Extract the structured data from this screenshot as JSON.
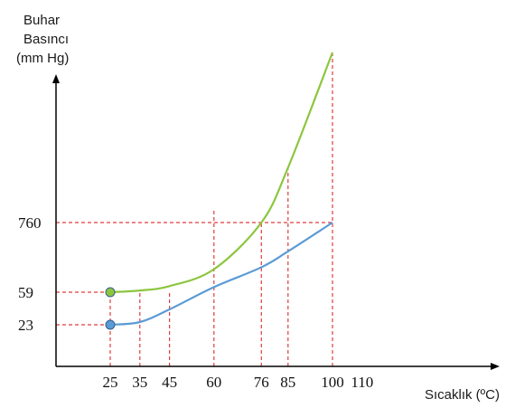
{
  "chart_data": {
    "type": "line",
    "ylabel_lines": [
      "Buhar",
      "Basıncı",
      "(mm Hg)"
    ],
    "xlabel": "Sıcaklık (ºC)",
    "x_ticks": [
      25,
      35,
      45,
      60,
      76,
      85,
      100,
      110
    ],
    "y_ticks": [
      23,
      59,
      760
    ],
    "grid": false,
    "series": [
      {
        "color": "#8cc63f",
        "x": [
          25,
          35,
          45,
          60,
          76,
          85,
          100
        ],
        "y": [
          59,
          76,
          120,
          290,
          760,
          1370,
          2650
        ]
      },
      {
        "color": "#5b9bd5",
        "x": [
          25,
          35,
          45,
          60,
          76,
          85,
          100
        ],
        "y": [
          23,
          26,
          40,
          110,
          310,
          470,
          760
        ]
      }
    ],
    "markers": [
      {
        "x": 25,
        "y": 59,
        "color": "#8cc63f"
      },
      {
        "x": 25,
        "y": 23,
        "color": "#5b9bd5"
      }
    ],
    "reference_lines": {
      "horizontal": [
        {
          "y": 760,
          "x_end": 100
        },
        {
          "y": 59,
          "x_end": 25
        },
        {
          "y": 23,
          "x_end": 25
        }
      ],
      "vertical": [
        {
          "x": 25,
          "y_top": 59
        },
        {
          "x": 35,
          "y_top": 59
        },
        {
          "x": 45,
          "y_top": 76
        },
        {
          "x": 60,
          "y_top": 900
        },
        {
          "x": 76,
          "y_top": 760
        },
        {
          "x": 85,
          "y_top": 1370
        },
        {
          "x": 100,
          "y_top": 2650
        }
      ],
      "color": "#e03c3c"
    }
  }
}
